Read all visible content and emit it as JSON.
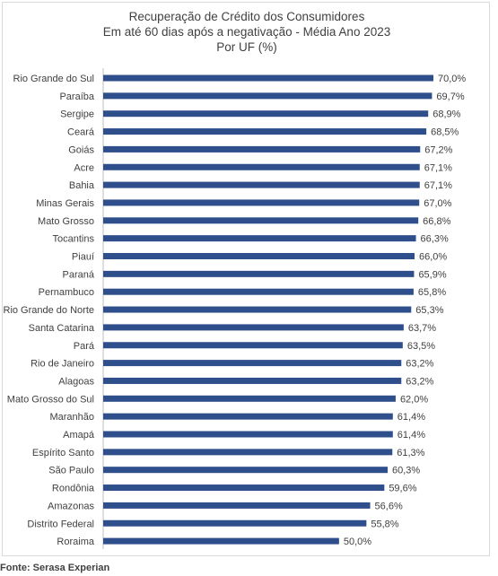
{
  "chart_data": {
    "type": "bar",
    "orientation": "horizontal",
    "title": [
      "Recuperação de Crédito dos Consumidores",
      "Em até 60 dias após a negativação - Média Ano 2023",
      "Por UF (%)"
    ],
    "xlim": [
      0,
      70
    ],
    "grid": false,
    "legend": "none",
    "bar_color": "#2e4f8c",
    "categories": [
      "Rio Grande do Sul",
      "Paraíba",
      "Sergipe",
      "Ceará",
      "Goiás",
      "Acre",
      "Bahia",
      "Minas Gerais",
      "Mato Grosso",
      "Tocantins",
      "Piauí",
      "Paraná",
      "Pernambuco",
      "Rio Grande do Norte",
      "Santa Catarina",
      "Pará",
      "Rio de Janeiro",
      "Alagoas",
      "Mato Grosso do Sul",
      "Maranhão",
      "Amapá",
      "Espírito Santo",
      "São Paulo",
      "Rondônia",
      "Amazonas",
      "Distrito Federal",
      "Roraima"
    ],
    "values": [
      70.0,
      69.7,
      68.9,
      68.5,
      67.2,
      67.1,
      67.1,
      67.0,
      66.8,
      66.3,
      66.0,
      65.9,
      65.8,
      65.3,
      63.7,
      63.5,
      63.2,
      63.2,
      62.0,
      61.4,
      61.4,
      61.3,
      60.3,
      59.6,
      56.6,
      55.8,
      50.0
    ],
    "value_labels": [
      "70,0%",
      "69,7%",
      "68,9%",
      "68,5%",
      "67,2%",
      "67,1%",
      "67,1%",
      "67,0%",
      "66,8%",
      "66,3%",
      "66,0%",
      "65,9%",
      "65,8%",
      "65,3%",
      "63,7%",
      "63,5%",
      "63,2%",
      "63,2%",
      "62,0%",
      "61,4%",
      "61,4%",
      "61,3%",
      "60,3%",
      "59,6%",
      "56,6%",
      "55,8%",
      "50,0%"
    ]
  },
  "source": "Fonte: Serasa Experian"
}
